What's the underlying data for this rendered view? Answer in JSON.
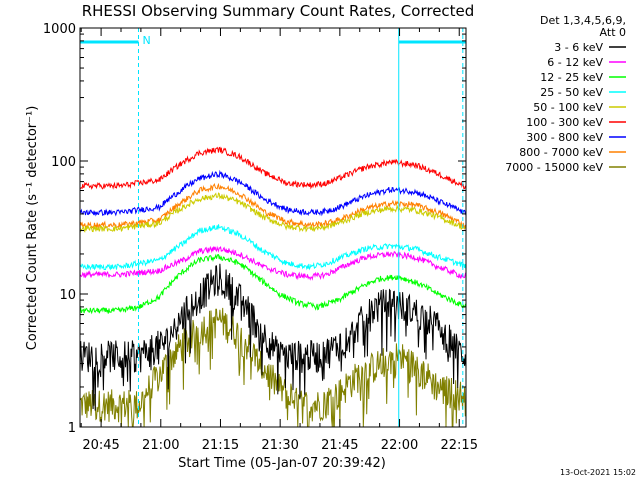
{
  "chart_data": {
    "type": "line",
    "title": "RHESSI Observing Summary Count Rates, Corrected",
    "xlabel": "Start Time (05-Jan-07 20:39:42)",
    "ylabel": "Corrected Count Rate (s⁻¹ detector⁻¹)",
    "y_scale": "log",
    "xlim_minutes": [
      0,
      97
    ],
    "ylim": [
      1,
      1000
    ],
    "x_ticks": [
      {
        "m": 5.3,
        "label": "20:45"
      },
      {
        "m": 20.3,
        "label": "21:00"
      },
      {
        "m": 35.3,
        "label": "21:15"
      },
      {
        "m": 50.3,
        "label": "21:30"
      },
      {
        "m": 65.3,
        "label": "21:45"
      },
      {
        "m": 80.3,
        "label": "22:00"
      },
      {
        "m": 95.3,
        "label": "22:15"
      }
    ],
    "y_ticks": [
      {
        "v": 1,
        "label": "1"
      },
      {
        "v": 10,
        "label": "10"
      },
      {
        "v": 100,
        "label": "100"
      },
      {
        "v": 1000,
        "label": "1000"
      }
    ],
    "legend_header": [
      "Det 1,3,4,5,6,9,",
      "Att 0"
    ],
    "legend_position": "right",
    "x_unit": "minutes after 20:39:42",
    "series": [
      {
        "name": "3 - 6 keV",
        "color": "#000000",
        "x": [
          0,
          14.7,
          15,
          22,
          29,
          35,
          40,
          45,
          50,
          55,
          60,
          64,
          68,
          74,
          78,
          84,
          88,
          92,
          95,
          97
        ],
        "y": [
          3.5,
          3.5,
          3.5,
          4.5,
          9.0,
          13.5,
          9.5,
          5.5,
          3.5,
          3.5,
          3.5,
          4.0,
          5.0,
          8.0,
          9.0,
          7.5,
          6.5,
          5.0,
          3.8,
          3.5
        ]
      },
      {
        "name": "6 - 12 keV",
        "color": "#ff00ff",
        "x": [
          0,
          10,
          20,
          26,
          30,
          35,
          40,
          46,
          52,
          58,
          62,
          66,
          72,
          78,
          84,
          90,
          95,
          97
        ],
        "y": [
          14,
          14,
          15,
          18,
          21,
          22,
          20,
          16,
          14,
          13.5,
          14,
          16,
          19,
          20,
          19,
          16,
          14,
          13.5
        ]
      },
      {
        "name": "12 - 25 keV",
        "color": "#00ff00",
        "x": [
          0,
          10,
          15,
          20,
          25,
          30,
          35,
          40,
          45,
          50,
          55,
          60,
          65,
          70,
          75,
          80,
          85,
          90,
          95,
          97
        ],
        "y": [
          7.5,
          7.5,
          8.0,
          9.5,
          14,
          18,
          19,
          17,
          13,
          10,
          8.5,
          8.0,
          9.0,
          11,
          13,
          13.5,
          12,
          10,
          8.5,
          8.0
        ]
      },
      {
        "name": "25 - 50 keV",
        "color": "#00ffff",
        "x": [
          0,
          10,
          20,
          26,
          30,
          35,
          40,
          46,
          52,
          58,
          62,
          66,
          72,
          78,
          84,
          90,
          95,
          97
        ],
        "y": [
          16,
          16,
          18,
          24,
          30,
          32,
          28,
          21,
          17,
          16,
          17,
          19,
          22,
          23,
          22,
          19,
          17,
          16
        ]
      },
      {
        "name": "50 - 100 keV",
        "color": "#cccc00",
        "x": [
          0,
          10,
          20,
          26,
          30,
          35,
          40,
          46,
          52,
          58,
          62,
          66,
          72,
          78,
          84,
          90,
          95,
          97
        ],
        "y": [
          31,
          31,
          34,
          45,
          52,
          55,
          49,
          38,
          32,
          31,
          32,
          35,
          41,
          44,
          43,
          38,
          33,
          31
        ]
      },
      {
        "name": "100 - 300 keV",
        "color": "#ff0000",
        "x": [
          0,
          10,
          20,
          26,
          30,
          35,
          40,
          46,
          52,
          58,
          62,
          66,
          72,
          78,
          84,
          90,
          95,
          97
        ],
        "y": [
          65,
          65,
          72,
          98,
          115,
          122,
          108,
          82,
          68,
          66,
          68,
          76,
          90,
          98,
          94,
          80,
          68,
          63
        ]
      },
      {
        "name": "300 - 800 keV",
        "color": "#0000ff",
        "x": [
          0,
          10,
          20,
          26,
          30,
          35,
          40,
          46,
          52,
          58,
          62,
          66,
          72,
          78,
          84,
          90,
          95,
          97
        ],
        "y": [
          41,
          41,
          45,
          62,
          74,
          80,
          70,
          52,
          43,
          41,
          42,
          46,
          55,
          61,
          59,
          50,
          43,
          40
        ]
      },
      {
        "name": "800 - 7000 keV",
        "color": "#ff8000",
        "x": [
          0,
          10,
          20,
          26,
          30,
          35,
          40,
          46,
          52,
          58,
          62,
          66,
          72,
          78,
          84,
          90,
          95,
          97
        ],
        "y": [
          33,
          33,
          36,
          50,
          60,
          65,
          57,
          42,
          35,
          33,
          34,
          37,
          44,
          48,
          47,
          41,
          35,
          32
        ]
      },
      {
        "name": "7000 - 15000 keV",
        "color": "#808000",
        "x": [
          0,
          14.7,
          15,
          20,
          25,
          30,
          35,
          40,
          45,
          50,
          55,
          60,
          65,
          70,
          75,
          80,
          85,
          90,
          95,
          97
        ],
        "y": [
          1.5,
          1.5,
          1.5,
          2.5,
          4.0,
          5.5,
          6.5,
          5.0,
          3.0,
          2.0,
          1.5,
          1.5,
          1.8,
          2.5,
          3.0,
          3.5,
          2.8,
          2.0,
          1.8,
          1.7
        ]
      }
    ],
    "annotations": {
      "night_bars_minutes": [
        [
          0,
          14.7
        ],
        [
          80.1,
          97
        ]
      ],
      "saa_marker_label": "N",
      "vertical_markers_minutes": [
        14.7,
        80.1,
        96.2
      ]
    }
  },
  "footer": {
    "timestamp": "13-Oct-2021 15:02"
  }
}
